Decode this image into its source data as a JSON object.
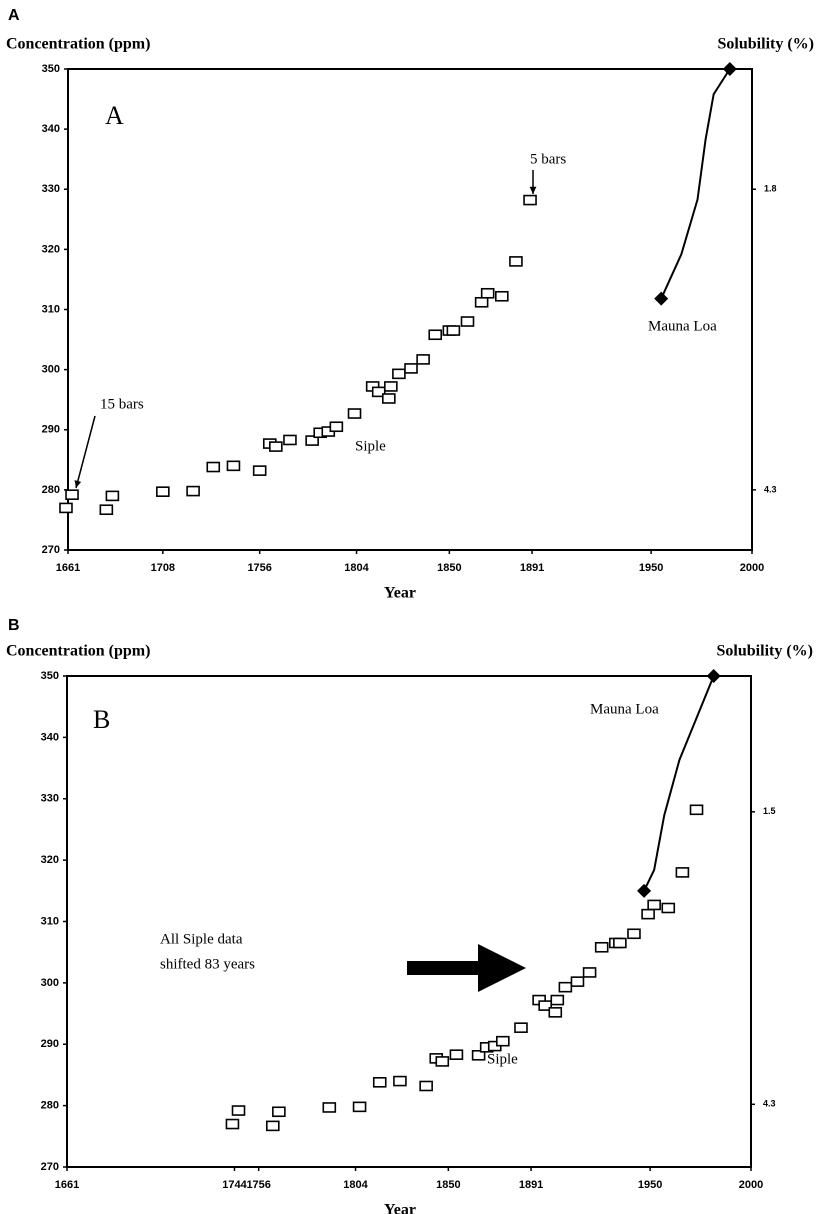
{
  "chart_data": [
    {
      "type": "scatter",
      "panel_label": "A",
      "plot_label": "A",
      "ylabel": "Concentration (ppm)",
      "y2label": "Solubility (%)",
      "xlabel": "Year",
      "xlim": [
        1661,
        2000
      ],
      "xticks": [
        1661,
        1708,
        1756,
        1804,
        1850,
        1891,
        1950,
        2000
      ],
      "ylim": [
        270,
        350
      ],
      "yticks": [
        270,
        280,
        290,
        300,
        310,
        320,
        330,
        340,
        350
      ],
      "y2lim": [
        4.8,
        0.8
      ],
      "y2ticks": [
        1.8,
        4.3
      ],
      "annotations": [
        "15 bars",
        "5 bars"
      ],
      "series": [
        {
          "name": "Siple",
          "color": "#000000",
          "marker": "square",
          "x": [
            1660,
            1663,
            1680,
            1683,
            1708,
            1723,
            1733,
            1743,
            1756,
            1761,
            1764,
            1771,
            1782,
            1786,
            1790,
            1794,
            1803,
            1812,
            1815,
            1820,
            1821,
            1825,
            1831,
            1837,
            1843,
            1850,
            1852,
            1859,
            1866,
            1869,
            1876,
            1883,
            1890
          ],
          "values": [
            277,
            279.2,
            276.7,
            279,
            279.7,
            279.8,
            283.8,
            284,
            283.2,
            287.7,
            287.2,
            288.3,
            288.2,
            289.5,
            289.7,
            290.5,
            292.7,
            297.2,
            296.3,
            295.2,
            297.2,
            299.3,
            300.2,
            301.7,
            305.8,
            306.5,
            306.5,
            308,
            311.2,
            312.7,
            312.2,
            318,
            328.2
          ]
        },
        {
          "name": "Mauna Loa",
          "color": "#000000",
          "marker": "diamond",
          "x": [
            1955,
            1965,
            1973,
            1977,
            1981,
            1989
          ],
          "values": [
            311.8,
            319.2,
            328.3,
            338.3,
            345.8,
            350
          ]
        }
      ]
    },
    {
      "type": "scatter",
      "panel_label": "B",
      "plot_label": "B",
      "ylabel": "Concentration (ppm)",
      "y2label": "Solubility (%)",
      "xlabel": "Year",
      "xlim": [
        1661,
        2000
      ],
      "xticks": [
        1661,
        1744,
        1756,
        1804,
        1850,
        1891,
        1950,
        2000
      ],
      "ylim": [
        270,
        350
      ],
      "yticks": [
        270,
        280,
        290,
        300,
        310,
        320,
        330,
        340,
        350
      ],
      "y2lim": [
        4.9,
        0.2
      ],
      "y2ticks": [
        1.5,
        4.3
      ],
      "annotations": [
        "All Siple data",
        "shifted 83 years"
      ],
      "series": [
        {
          "name": "Siple",
          "color": "#000000",
          "marker": "square",
          "x": [
            1743,
            1746,
            1763,
            1766,
            1791,
            1806,
            1816,
            1826,
            1839,
            1844,
            1847,
            1854,
            1865,
            1869,
            1873,
            1877,
            1886,
            1895,
            1898,
            1903,
            1904,
            1908,
            1914,
            1920,
            1926,
            1933,
            1935,
            1942,
            1949,
            1952,
            1959,
            1966,
            1973
          ],
          "values": [
            277,
            279.2,
            276.7,
            279,
            279.7,
            279.8,
            283.8,
            284,
            283.2,
            287.7,
            287.2,
            288.3,
            288.2,
            289.5,
            289.7,
            290.5,
            292.7,
            297.2,
            296.3,
            295.2,
            297.2,
            299.3,
            300.2,
            301.7,
            305.8,
            306.5,
            306.5,
            308,
            311.2,
            312.7,
            312.2,
            318,
            328.2
          ]
        },
        {
          "name": "Mauna Loa",
          "color": "#000000",
          "marker": "diamond",
          "x": [
            1947,
            1952,
            1957,
            1964.5,
            1981.5
          ],
          "values": [
            315,
            318.4,
            327.3,
            336.3,
            350
          ]
        }
      ]
    }
  ]
}
